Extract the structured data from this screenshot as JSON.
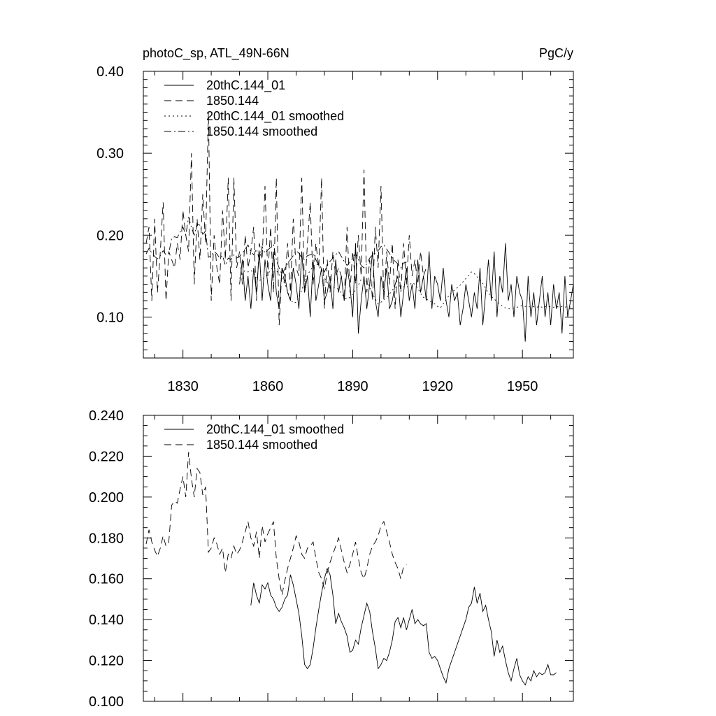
{
  "chart_data": [
    {
      "type": "line",
      "title_left": "photoC_sp, ATL_49N-66N",
      "title_right": "PgC/y",
      "xlim": [
        1816,
        1968
      ],
      "ylim": [
        0.05,
        0.4
      ],
      "x_tick_labels": [
        "1830",
        "1860",
        "1890",
        "1920",
        "1950"
      ],
      "y_tick_labels": [
        "0.10",
        "0.20",
        "0.30",
        "0.40"
      ],
      "legend_position": "top-left",
      "series": [
        {
          "name": "20thC.144_01",
          "dash": "solid",
          "x_start": 1850,
          "x_step": 1,
          "values": [
            0.14,
            0.17,
            0.12,
            0.15,
            0.11,
            0.16,
            0.13,
            0.18,
            0.12,
            0.17,
            0.14,
            0.12,
            0.18,
            0.13,
            0.11,
            0.16,
            0.15,
            0.13,
            0.12,
            0.16,
            0.14,
            0.11,
            0.18,
            0.13,
            0.15,
            0.1,
            0.17,
            0.12,
            0.14,
            0.16,
            0.12,
            0.13,
            0.15,
            0.11,
            0.17,
            0.13,
            0.15,
            0.12,
            0.16,
            0.14,
            0.1,
            0.19,
            0.08,
            0.12,
            0.15,
            0.11,
            0.14,
            0.18,
            0.12,
            0.1,
            0.15,
            0.13,
            0.16,
            0.11,
            0.12,
            0.14,
            0.15,
            0.1,
            0.13,
            0.16,
            0.12,
            0.14,
            0.11,
            0.17,
            0.13,
            0.15,
            0.12,
            0.18,
            0.11,
            0.15,
            0.14,
            0.12,
            0.16,
            0.12,
            0.1,
            0.14,
            0.12,
            0.13,
            0.09,
            0.11,
            0.14,
            0.12,
            0.1,
            0.13,
            0.11,
            0.16,
            0.09,
            0.13,
            0.17,
            0.12,
            0.18,
            0.1,
            0.15,
            0.13,
            0.19,
            0.12,
            0.14,
            0.1,
            0.15,
            0.13,
            0.12,
            0.07,
            0.15,
            0.1,
            0.13,
            0.09,
            0.12,
            0.15,
            0.1,
            0.13,
            0.09,
            0.14,
            0.11,
            0.13,
            0.08,
            0.15,
            0.1,
            0.12,
            0.14,
            0.09
          ]
        },
        {
          "name": "1850.144",
          "dash": "dashed",
          "x_start": 1817,
          "x_step": 1,
          "values": [
            0.19,
            0.21,
            0.12,
            0.22,
            0.13,
            0.18,
            0.24,
            0.12,
            0.18,
            0.17,
            0.16,
            0.19,
            0.17,
            0.23,
            0.2,
            0.18,
            0.3,
            0.14,
            0.22,
            0.17,
            0.25,
            0.19,
            0.35,
            0.12,
            0.2,
            0.16,
            0.14,
            0.23,
            0.17,
            0.27,
            0.12,
            0.27,
            0.16,
            0.18,
            0.14,
            0.2,
            0.16,
            0.18,
            0.21,
            0.12,
            0.19,
            0.17,
            0.26,
            0.15,
            0.21,
            0.13,
            0.27,
            0.09,
            0.16,
            0.14,
            0.19,
            0.13,
            0.22,
            0.16,
            0.15,
            0.27,
            0.13,
            0.19,
            0.24,
            0.14,
            0.19,
            0.16,
            0.27,
            0.11,
            0.17,
            0.13,
            0.18,
            0.15,
            0.16,
            0.15,
            0.12,
            0.21,
            0.13,
            0.18,
            0.14,
            0.2,
            0.15,
            0.28,
            0.13,
            0.17,
            0.12,
            0.21,
            0.16,
            0.26,
            0.12,
            0.18,
            0.14,
            0.19,
            0.11,
            0.17,
            0.13,
            0.19,
            0.14,
            0.2,
            0.15,
            0.17,
            0.14,
            0.18,
            0.15,
            0.16
          ]
        },
        {
          "name": "20thC.144_01 smoothed",
          "dash": "dotted",
          "x_start": 1850,
          "x_step": 1,
          "values": [
            0.147,
            0.153,
            0.157,
            0.155,
            0.157,
            0.154,
            0.149,
            0.145,
            0.146,
            0.149,
            0.152,
            0.158,
            0.161,
            0.157,
            0.152,
            0.147,
            0.141,
            0.132,
            0.122,
            0.117,
            0.118,
            0.124,
            0.133,
            0.143,
            0.151,
            0.157,
            0.162,
            0.165,
            0.163,
            0.156,
            0.148,
            0.142,
            0.138,
            0.137,
            0.136,
            0.134,
            0.129,
            0.124,
            0.122,
            0.124,
            0.128,
            0.133,
            0.139,
            0.146,
            0.148,
            0.142,
            0.136,
            0.129,
            0.122,
            0.116,
            0.118,
            0.121,
            0.124,
            0.128,
            0.133,
            0.136,
            0.138,
            0.138,
            0.137,
            0.136,
            0.139,
            0.142,
            0.14,
            0.135,
            0.129,
            0.124,
            0.122,
            0.12,
            0.118,
            0.116,
            0.113,
            0.111,
            0.116,
            0.121,
            0.126,
            0.13,
            0.133,
            0.136,
            0.139,
            0.143,
            0.147,
            0.151,
            0.155,
            0.153,
            0.149,
            0.145,
            0.141,
            0.135,
            0.129,
            0.125,
            0.122,
            0.119,
            0.116,
            0.113,
            0.111,
            0.11,
            0.11,
            0.111,
            0.112,
            0.113,
            0.114,
            0.113,
            0.113,
            0.112,
            0.113,
            0.112,
            0.113,
            0.112,
            0.113,
            0.112,
            0.113,
            0.112,
            0.113,
            0.112,
            0.113,
            0.112,
            0.113,
            0.112
          ]
        },
        {
          "name": "1850.144 smoothed",
          "dash": "dashdot",
          "x_start": 1817,
          "x_step": 1,
          "values": [
            0.177,
            0.184,
            0.178,
            0.174,
            0.171,
            0.175,
            0.181,
            0.176,
            0.178,
            0.196,
            0.198,
            0.197,
            0.204,
            0.21,
            0.2,
            0.222,
            0.209,
            0.2,
            0.214,
            0.212,
            0.201,
            0.205,
            0.173,
            0.175,
            0.18,
            0.177,
            0.172,
            0.175,
            0.163,
            0.172,
            0.17,
            0.176,
            0.172,
            0.174,
            0.178,
            0.183,
            0.188,
            0.18,
            0.176,
            0.183,
            0.17,
            0.186,
            0.178,
            0.182,
            0.185,
            0.188,
            0.17,
            0.16,
            0.152,
            0.159,
            0.165,
            0.17,
            0.175,
            0.181,
            0.178,
            0.172,
            0.17,
            0.175,
            0.176,
            0.178,
            0.17,
            0.163,
            0.16,
            0.155,
            0.163,
            0.168,
            0.172,
            0.176,
            0.18,
            0.174,
            0.168,
            0.163,
            0.167,
            0.172,
            0.178,
            0.17,
            0.163,
            0.16,
            0.165,
            0.172,
            0.176,
            0.178,
            0.181,
            0.186,
            0.188,
            0.183,
            0.178,
            0.172,
            0.168,
            0.165,
            0.16,
            0.166,
            0.167
          ]
        }
      ]
    },
    {
      "type": "line",
      "xlim": [
        1816,
        1968
      ],
      "ylim": [
        0.1,
        0.24
      ],
      "x_tick_labels": [],
      "y_tick_labels": [
        "0.100",
        "0.120",
        "0.140",
        "0.160",
        "0.180",
        "0.200",
        "0.220",
        "0.240"
      ],
      "legend_position": "top-left",
      "series": [
        {
          "name": "20thC.144_01 smoothed",
          "dash": "solid",
          "x_start": 1854,
          "x_step": 1,
          "values": [
            0.147,
            0.158,
            0.152,
            0.148,
            0.157,
            0.155,
            0.158,
            0.152,
            0.15,
            0.146,
            0.144,
            0.146,
            0.15,
            0.152,
            0.162,
            0.157,
            0.15,
            0.143,
            0.132,
            0.118,
            0.116,
            0.118,
            0.126,
            0.136,
            0.145,
            0.153,
            0.16,
            0.165,
            0.162,
            0.152,
            0.138,
            0.143,
            0.139,
            0.136,
            0.132,
            0.124,
            0.125,
            0.13,
            0.128,
            0.136,
            0.142,
            0.148,
            0.144,
            0.134,
            0.126,
            0.116,
            0.118,
            0.121,
            0.12,
            0.124,
            0.13,
            0.139,
            0.141,
            0.136,
            0.141,
            0.135,
            0.14,
            0.145,
            0.138,
            0.14,
            0.138,
            0.137,
            0.138,
            0.124,
            0.121,
            0.122,
            0.12,
            0.116,
            0.112,
            0.109,
            0.116,
            0.12,
            0.124,
            0.128,
            0.132,
            0.136,
            0.14,
            0.146,
            0.148,
            0.156,
            0.148,
            0.153,
            0.144,
            0.147,
            0.14,
            0.134,
            0.122,
            0.13,
            0.124,
            0.127,
            0.12,
            0.114,
            0.11,
            0.116,
            0.121,
            0.113,
            0.11,
            0.108,
            0.112,
            0.11,
            0.115,
            0.112,
            0.114,
            0.113,
            0.114,
            0.118,
            0.113,
            0.113,
            0.114
          ]
        },
        {
          "name": "1850.144 smoothed",
          "dash": "dashed",
          "x_start": 1817,
          "x_step": 1,
          "values": [
            0.177,
            0.184,
            0.178,
            0.174,
            0.171,
            0.175,
            0.181,
            0.176,
            0.178,
            0.196,
            0.198,
            0.197,
            0.204,
            0.21,
            0.2,
            0.222,
            0.209,
            0.2,
            0.214,
            0.212,
            0.201,
            0.205,
            0.173,
            0.175,
            0.18,
            0.177,
            0.172,
            0.175,
            0.163,
            0.172,
            0.17,
            0.176,
            0.172,
            0.174,
            0.178,
            0.183,
            0.188,
            0.18,
            0.176,
            0.183,
            0.17,
            0.186,
            0.178,
            0.182,
            0.185,
            0.188,
            0.17,
            0.16,
            0.152,
            0.159,
            0.165,
            0.17,
            0.175,
            0.181,
            0.178,
            0.172,
            0.17,
            0.175,
            0.176,
            0.178,
            0.17,
            0.163,
            0.16,
            0.155,
            0.163,
            0.168,
            0.172,
            0.176,
            0.18,
            0.174,
            0.168,
            0.163,
            0.167,
            0.172,
            0.178,
            0.17,
            0.163,
            0.16,
            0.165,
            0.172,
            0.176,
            0.178,
            0.181,
            0.186,
            0.188,
            0.183,
            0.178,
            0.172,
            0.168,
            0.165,
            0.16,
            0.166,
            0.167
          ]
        }
      ]
    }
  ]
}
